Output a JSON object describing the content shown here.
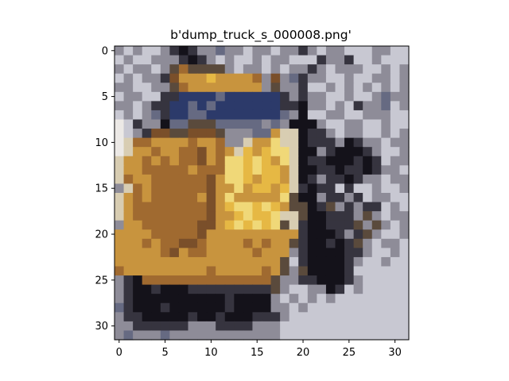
{
  "chart_data": {
    "type": "heatmap",
    "title": "b'dump_truck_s_000008.png'",
    "xlabel": "",
    "ylabel": "",
    "grid": false,
    "x_range": [
      -0.5,
      31.5
    ],
    "y_range": [
      31.5,
      -0.5
    ],
    "x_ticks": [
      0,
      5,
      10,
      15,
      20,
      25,
      30
    ],
    "y_ticks": [
      0,
      5,
      10,
      15,
      20,
      25,
      30
    ],
    "x_tick_labels": [
      "0",
      "5",
      "10",
      "15",
      "20",
      "25",
      "30"
    ],
    "y_tick_labels": [
      "0",
      "5",
      "10",
      "15",
      "20",
      "25",
      "30"
    ],
    "image_size": [
      32,
      32
    ],
    "palette": {
      "D": "#14121a",
      "N": "#36343f",
      "G": "#8e8c98",
      "L": "#c8c8d2",
      "W": "#ece9e6",
      "Y": "#e6b844",
      "O": "#c8943e",
      "B": "#a06a30",
      "K": "#7a4f2a",
      "U": "#2c3a6a",
      "S": "#666a82",
      "T": "#d8cdb2",
      "P": "#f0d878",
      "R": "#5a4a3c"
    },
    "pixel_rows": [
      "GLGLLGNDNGGSGGLGGLGGNGLGGLLLGGLL",
      "LGLLGGGNDNGLGLLGLGGLLLNGGNLLGLLL",
      "GLGGLGRBRRRRGLGGLGLGGNGLGGGLLGLG",
      "LGLGGNKOOOYOOOOBGKGSNGGLLGLLGGLG",
      "GGLLGGRBOOOOOOOOGRGGNLLGLGLGLGLG",
      "LGGLLNNUUUUSUUUUUUNGNGGLLGLLGSGG",
      "GGLGNNUUSUSUUUUUUUNNDGGLGLNGGSLG",
      "LGLGSNUUSSUUUUUUUUSGDLLGGLLGGGLL",
      "WLNGGDSSRRRSSSSSGSGDDDGLLGGLLGLL",
      "WLGNKKRRKKKRGGGSSOTTDNNGLGGLLGLG",
      "WTBBOOOOBOOBGGTOOPTTDNNNGDNGGLGG",
      "WTOOBOOBBKOBOTYOYPPTDDGNDDDNGLLG",
      "TOOBOBOBBKOBPPYPYOPTDNNDDDNDNLGG",
      "TOOBBBBBOBBBPPYPYYOTDDNNDNNDNGGL",
      "TBOOBBBBBBKOPPYOYYOTDNGNNDNGGLGG",
      "GTBOBBBBBBKOOPOYYOYTNDNNLNLLGLLG",
      "TOBOBBBBBOKOPOOOOOPRDDGNNGNLGGLL",
      "TOBBBBBBBBKOYPPYPYORRDNRGNGNNLGL",
      "TOBBBBBBBBKOOYPYYPTTRDDNNNGRGLGG",
      "GOOBBBBBBKKOYPYPYPRTNDDNNNRGRGLG",
      "OOOOBBBBBKOOOOOOOOOONDDDNGNRGLLG",
      "OOOBOBBKKBOOOOBOBOORNDDNDNRGLGGL",
      "OOOOOBKOBBOOOOOBOOOGNDDDDNNGLLGL",
      "OOOOOOOOOOOOOOOOOORLNDDDDNGLLGLL",
      "BOOOOOOOOOBOOOOOBORGRDDDDNLLLLLL",
      "GNDBBBBBBBBBBBBBBRGGNNDDDNGLLLLL",
      "GNDDNDDDNNNNNNNNNRGLLGGDNLGLLLLL",
      "GNDDDDDDDDDDNDDDDGLGLGLGLLLLLLLL",
      "SNDDDNDDDDDDNDDDDGGLGLLLLLLLLLLL",
      "GNNDDDDDNDDNDDDNNNGLLLLLLLLLLLLL",
      "GGNNNNNNGGGNNNNGGGLLLLLLLLLLLLLL",
      "GSGGGSGGGGGGGGGGGGLLLLLLLLLLLLLL"
    ]
  }
}
